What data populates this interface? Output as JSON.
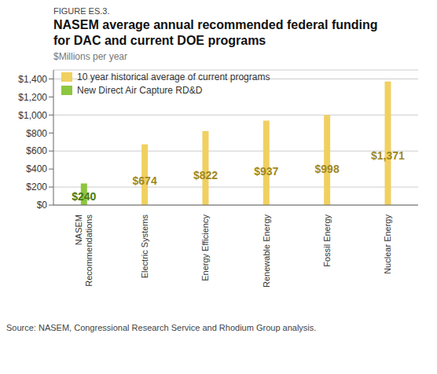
{
  "chart_data": {
    "type": "bar",
    "figure_label": "FIGURE ES.3.",
    "title": "NASEM average annual recommended federal funding\nfor DAC and current DOE programs",
    "subtitle": "$Millions per year",
    "source": "Source: NASEM, Congressional Research Service and Rhodium Group analysis.",
    "categories": [
      "NASEM\nRecommendations",
      "Electric Systems",
      "Energy Efficiency",
      "Renewable Energy",
      "Fossil Energy",
      "Nuclear Energy"
    ],
    "series": [
      {
        "name": "10 year historical average of current programs",
        "color": "#f0d060",
        "values": [
          null,
          674,
          822,
          937,
          998,
          1371
        ],
        "value_labels": [
          null,
          "$674",
          "$822",
          "$937",
          "$998",
          "$1,371"
        ]
      },
      {
        "name": "New Direct Air Capture RD&D",
        "color": "#8dc63f",
        "values": [
          240,
          null,
          null,
          null,
          null,
          null
        ],
        "value_labels": [
          "$240",
          null,
          null,
          null,
          null,
          null
        ]
      }
    ],
    "ylim": [
      0,
      1500
    ],
    "yticks": [
      {
        "value": 0,
        "label": "$0"
      },
      {
        "value": 200,
        "label": "$200"
      },
      {
        "value": 400,
        "label": "$400"
      },
      {
        "value": 600,
        "label": "$600"
      },
      {
        "value": 800,
        "label": "$800"
      },
      {
        "value": 1000,
        "label": "$1,000"
      },
      {
        "value": 1200,
        "label": "$1,200"
      },
      {
        "value": 1400,
        "label": "$1,400"
      }
    ],
    "grid": true,
    "legend": "upper left",
    "data_labels": true
  }
}
